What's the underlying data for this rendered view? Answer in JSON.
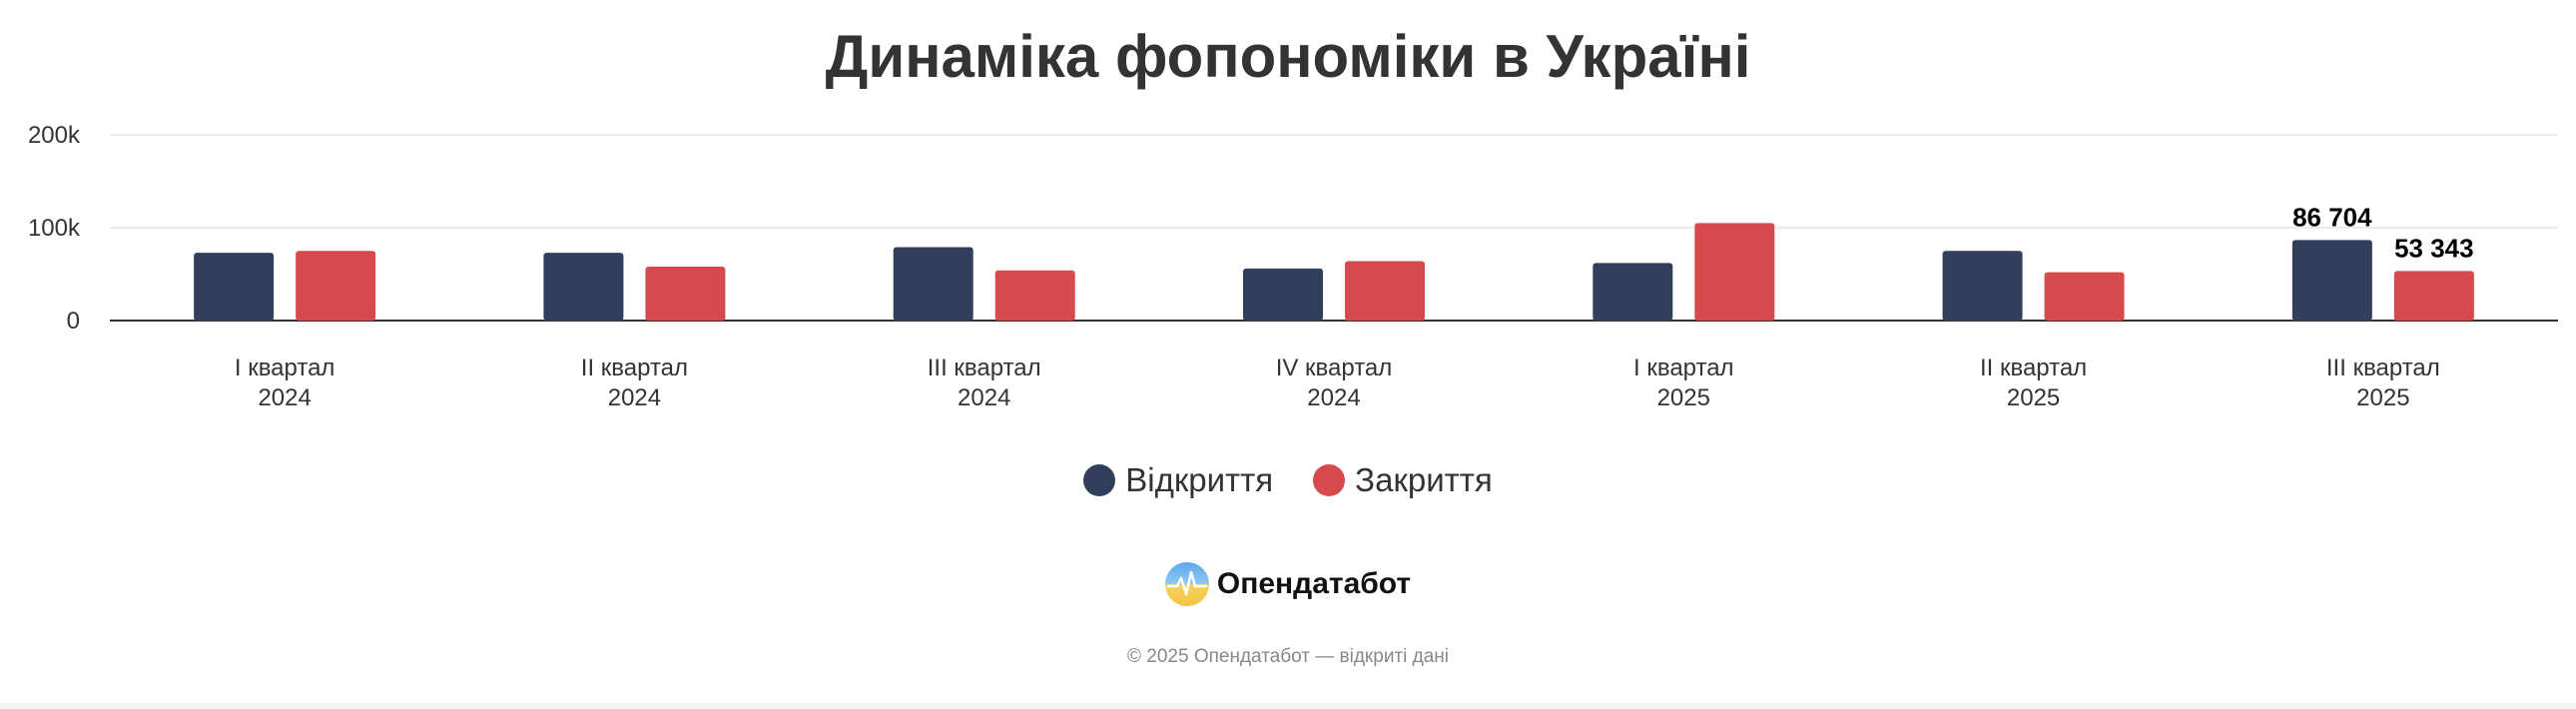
{
  "chart_data": {
    "type": "bar",
    "title": "Динаміка фопономіки в Україні",
    "categories": [
      [
        "I квартал",
        "2024"
      ],
      [
        "II квартал",
        "2024"
      ],
      [
        "III квартал",
        "2024"
      ],
      [
        "IV квартал",
        "2024"
      ],
      [
        "I квартал",
        "2025"
      ],
      [
        "II квартал",
        "2025"
      ],
      [
        "III квартал",
        "2025"
      ]
    ],
    "series": [
      {
        "name": "Відкриття",
        "color": "#323f5c",
        "values": [
          73000,
          73000,
          79000,
          56000,
          62000,
          75000,
          86704
        ]
      },
      {
        "name": "Закриття",
        "color": "#d64a4d",
        "values": [
          75000,
          58000,
          54000,
          64000,
          105000,
          52000,
          53343
        ]
      }
    ],
    "data_labels": [
      {
        "series": 0,
        "index": 6,
        "text": "86 704"
      },
      {
        "series": 1,
        "index": 6,
        "text": "53 343"
      }
    ],
    "ylim": [
      0,
      200000
    ],
    "yticks": [
      {
        "value": 0,
        "label": "0"
      },
      {
        "value": 100000,
        "label": "100k"
      },
      {
        "value": 200000,
        "label": "200k"
      }
    ],
    "grid": true,
    "legend_position": "bottom-center"
  },
  "brand": {
    "name": "Опендатабот",
    "logo_icon": "opendatabot-logo-icon"
  },
  "footer": {
    "text": "© 2025 Опендатабот — відкриті дані"
  }
}
